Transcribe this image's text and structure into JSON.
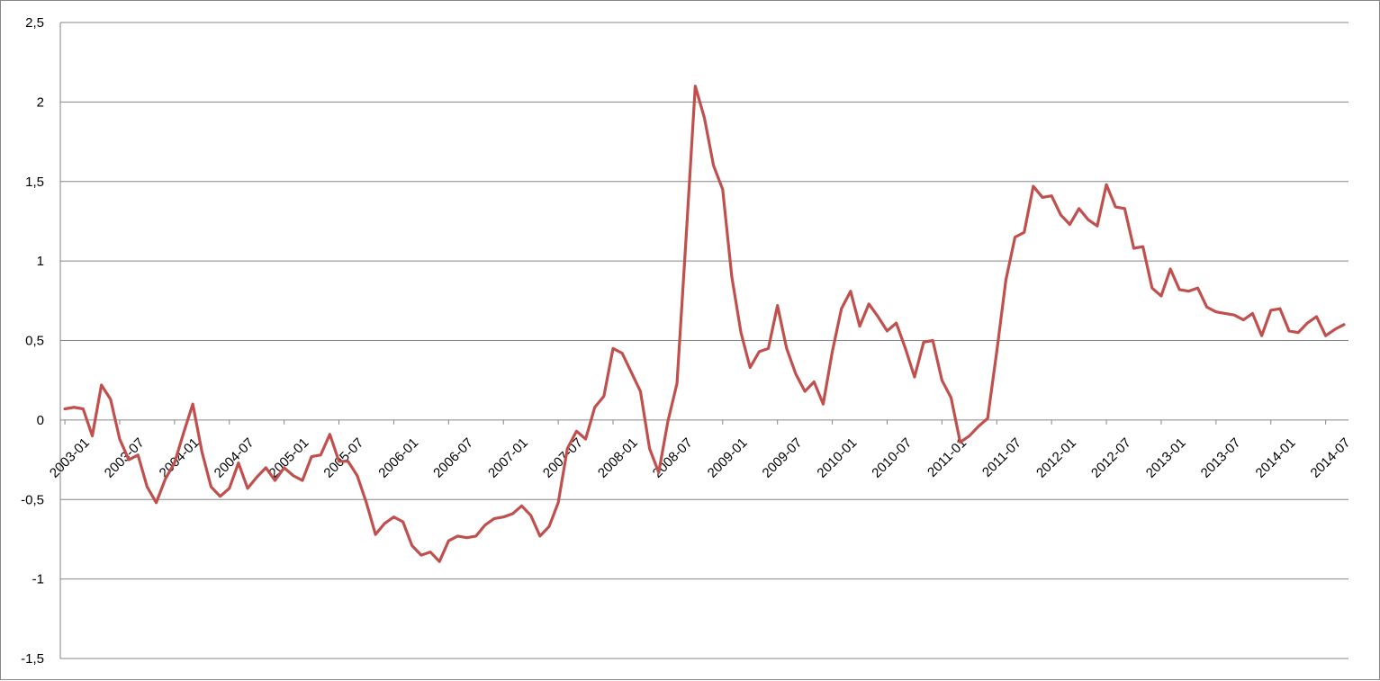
{
  "chart_data": {
    "type": "line",
    "title": "",
    "xlabel": "",
    "ylabel": "",
    "ylim": [
      -1.5,
      2.5
    ],
    "y_ticks": [
      {
        "value": 2.5,
        "label": "2,5"
      },
      {
        "value": 2,
        "label": "2"
      },
      {
        "value": 1.5,
        "label": "1,5"
      },
      {
        "value": 1,
        "label": "1"
      },
      {
        "value": 0.5,
        "label": "0,5"
      },
      {
        "value": 0,
        "label": "0"
      },
      {
        "value": -0.5,
        "label": "-0,5"
      },
      {
        "value": -1,
        "label": "-1"
      },
      {
        "value": -1.5,
        "label": "-1,5"
      }
    ],
    "x_tick_labels": [
      "2003-01",
      "2003-07",
      "2004-01",
      "2004-07",
      "2005-01",
      "2005-07",
      "2006-01",
      "2006-07",
      "2007-01",
      "2007-07",
      "2008-01",
      "2008-07",
      "2009-01",
      "2009-07",
      "2010-01",
      "2010-07",
      "2011-01",
      "2011-07",
      "2012-01",
      "2012-07",
      "2013-01",
      "2013-07",
      "2014-01",
      "2014-07"
    ],
    "x_tick_every": 6,
    "grid": true,
    "legend": "none",
    "color": "#c0504d",
    "series": [
      {
        "values": [
          0.07,
          0.08,
          0.07,
          -0.1,
          0.22,
          0.13,
          -0.12,
          -0.25,
          -0.22,
          -0.42,
          -0.52,
          -0.37,
          -0.27,
          -0.08,
          0.1,
          -0.2,
          -0.42,
          -0.48,
          -0.43,
          -0.27,
          -0.43,
          -0.36,
          -0.3,
          -0.38,
          -0.3,
          -0.35,
          -0.38,
          -0.23,
          -0.22,
          -0.09,
          -0.26,
          -0.26,
          -0.35,
          -0.52,
          -0.72,
          -0.65,
          -0.61,
          -0.64,
          -0.79,
          -0.85,
          -0.83,
          -0.89,
          -0.76,
          -0.73,
          -0.74,
          -0.73,
          -0.66,
          -0.62,
          -0.61,
          -0.59,
          -0.54,
          -0.6,
          -0.73,
          -0.67,
          -0.52,
          -0.18,
          -0.07,
          -0.12,
          0.08,
          0.15,
          0.45,
          0.42,
          0.3,
          0.18,
          -0.18,
          -0.33,
          -0.01,
          0.23,
          1.15,
          2.1,
          1.9,
          1.6,
          1.45,
          0.9,
          0.55,
          0.33,
          0.43,
          0.45,
          0.72,
          0.45,
          0.29,
          0.18,
          0.24,
          0.1,
          0.43,
          0.7,
          0.81,
          0.59,
          0.73,
          0.65,
          0.56,
          0.61,
          0.45,
          0.27,
          0.49,
          0.5,
          0.25,
          0.14,
          -0.14,
          -0.1,
          -0.04,
          0.01,
          0.43,
          0.88,
          1.15,
          1.18,
          1.47,
          1.4,
          1.41,
          1.29,
          1.23,
          1.33,
          1.26,
          1.22,
          1.48,
          1.34,
          1.33,
          1.08,
          1.09,
          0.83,
          0.78,
          0.95,
          0.82,
          0.81,
          0.83,
          0.71,
          0.68,
          0.67,
          0.66,
          0.63,
          0.67,
          0.53,
          0.69,
          0.7,
          0.56,
          0.55,
          0.61,
          0.65,
          0.53,
          0.57,
          0.6
        ]
      }
    ]
  }
}
